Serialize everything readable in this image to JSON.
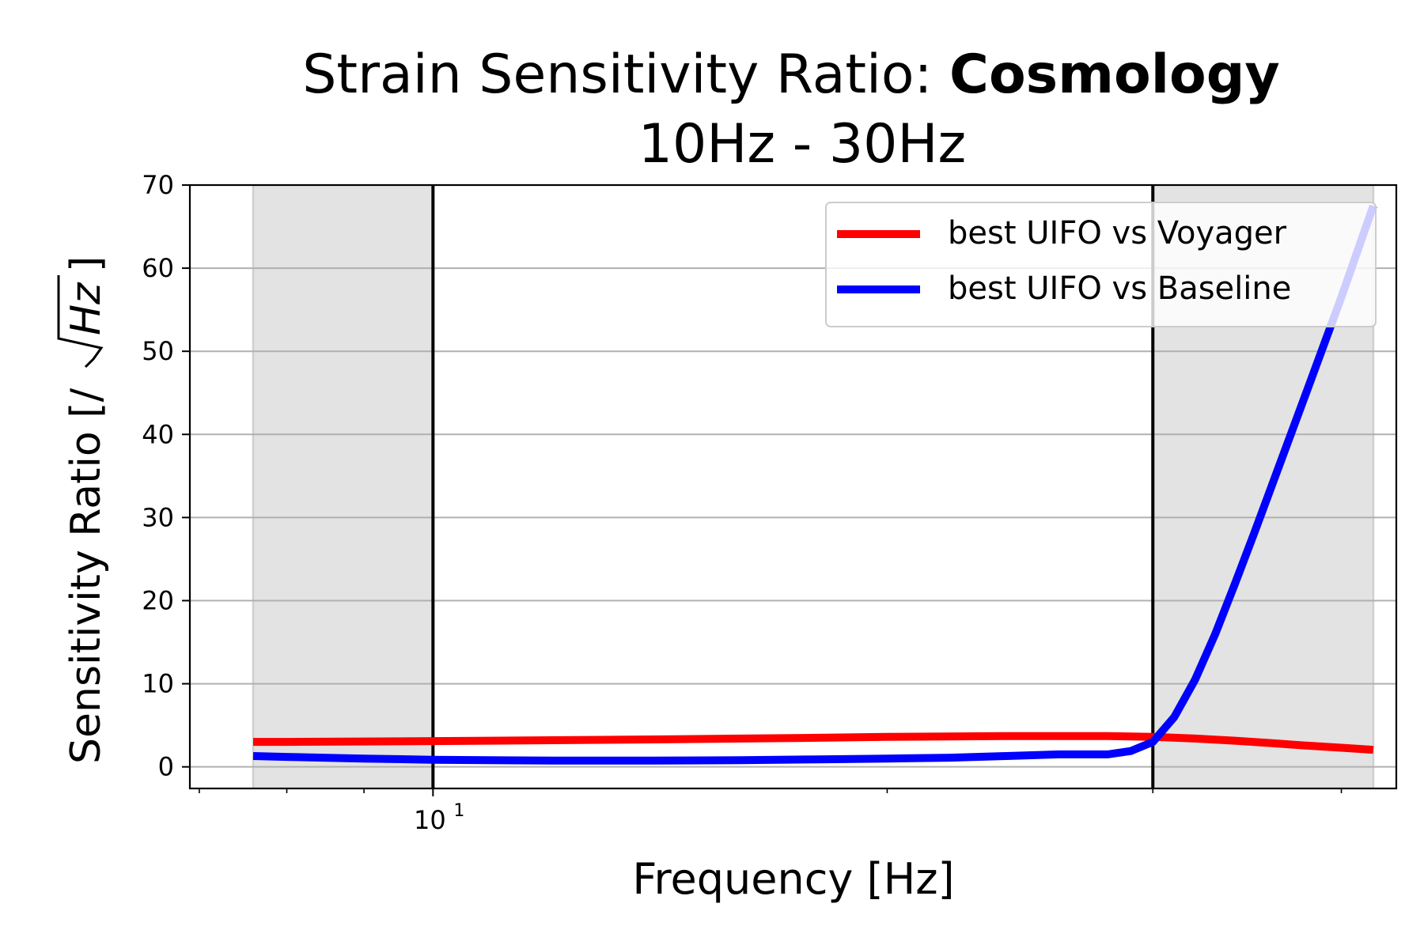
{
  "chart_data": {
    "type": "line",
    "title": "Strain Sensitivity Ratio: ",
    "title_bold": "Cosmology",
    "subtitle": "10Hz - 30Hz",
    "xlabel": "Frequency [Hz]",
    "ylabel_prefix": "Sensitivity Ratio [/",
    "ylabel_sqrt_arg": "Hz",
    "ylabel_suffix": "]",
    "x_scale": "log",
    "xlim": [
      6.9,
      43.5
    ],
    "ylim": [
      -2.6,
      70
    ],
    "yticks": [
      0,
      10,
      20,
      30,
      40,
      50,
      60,
      70
    ],
    "ytick_labels": [
      "0",
      "10",
      "20",
      "30",
      "40",
      "50",
      "60",
      "70"
    ],
    "xtick_major": {
      "value": 10,
      "base": "10",
      "exponent": "1"
    },
    "xtick_minor": [
      7,
      8,
      9,
      20,
      30,
      40
    ],
    "grid": "horizontal",
    "shaded_regions": [
      {
        "from": 7.6,
        "to": 10
      },
      {
        "from": 30,
        "to": 42
      }
    ],
    "vertical_lines": [
      10,
      30
    ],
    "legend_position": "top-right",
    "series": [
      {
        "name": "best UIFO vs Voyager",
        "color": "#ff0000",
        "x": [
          7.6,
          8,
          9,
          10,
          12,
          14,
          16,
          18,
          20,
          22,
          24,
          26,
          28,
          30,
          32,
          34,
          36,
          38,
          40,
          42
        ],
        "y": [
          3.0,
          3.0,
          3.05,
          3.1,
          3.2,
          3.3,
          3.4,
          3.5,
          3.6,
          3.65,
          3.7,
          3.7,
          3.7,
          3.6,
          3.4,
          3.15,
          2.85,
          2.55,
          2.3,
          2.05
        ]
      },
      {
        "name": "best UIFO vs Baseline",
        "color": "#0000ff",
        "x": [
          7.6,
          8,
          9,
          10,
          12,
          14,
          16,
          18,
          20,
          22,
          24,
          26,
          27,
          28,
          29,
          30,
          31,
          32,
          33,
          34,
          35,
          36,
          38,
          40,
          42
        ],
        "y": [
          1.3,
          1.2,
          1.0,
          0.85,
          0.75,
          0.75,
          0.8,
          0.9,
          1.0,
          1.1,
          1.3,
          1.5,
          1.5,
          1.5,
          1.9,
          3.0,
          6.0,
          10.5,
          16.0,
          22.0,
          28.0,
          34.0,
          45.5,
          56.5,
          67.5
        ]
      }
    ]
  }
}
